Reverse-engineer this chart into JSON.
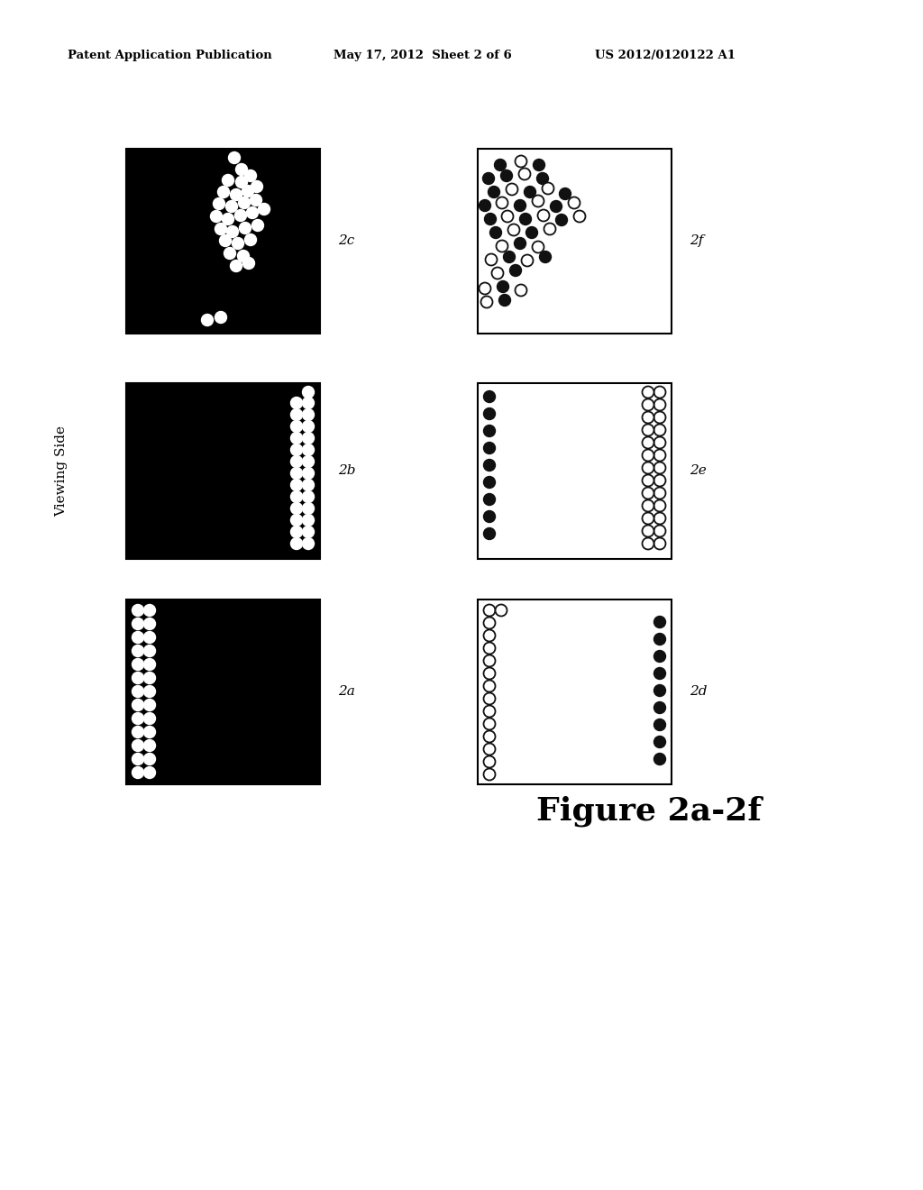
{
  "title_line1": "Patent Application Publication",
  "title_line2": "May 17, 2012  Sheet 2 of 6",
  "title_line3": "US 2012/0120122 A1",
  "figure_label": "Figure 2a-2f",
  "viewing_side_label": "Viewing Side",
  "bg_color": "#ffffff",
  "dot_white": "#ffffff",
  "dot_black": "#111111",
  "dot_open_face": "#ffffff",
  "dot_open_edge": "#111111"
}
